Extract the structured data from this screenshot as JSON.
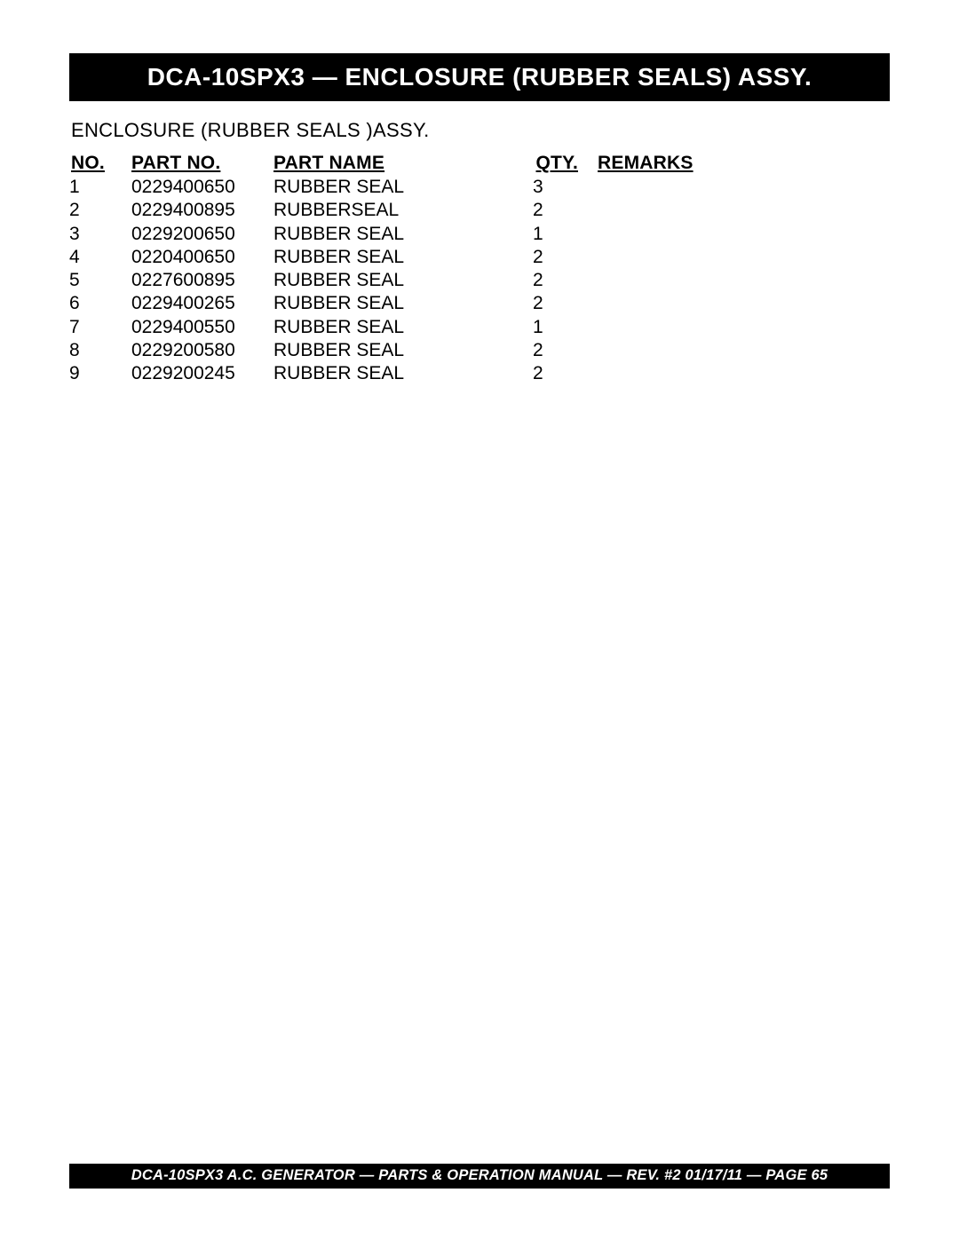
{
  "header": {
    "title": "DCA-10SPX3  — ENCLOSURE (RUBBER SEALS) ASSY."
  },
  "subtitle": "ENCLOSURE (RUBBER SEALS )ASSY.",
  "table": {
    "columns": {
      "no": "NO.",
      "part_no": "PART NO.",
      "part_name": "PART NAME",
      "qty": "QTY.",
      "remarks": "REMARKS"
    },
    "rows": [
      {
        "no": "1",
        "part_no": "0229400650",
        "part_name": "RUBBER SEAL",
        "qty": "3",
        "remarks": ""
      },
      {
        "no": "2",
        "part_no": "0229400895",
        "part_name": "RUBBERSEAL",
        "qty": "2",
        "remarks": ""
      },
      {
        "no": "3",
        "part_no": "0229200650",
        "part_name": "RUBBER SEAL",
        "qty": "1",
        "remarks": ""
      },
      {
        "no": "4",
        "part_no": "0220400650",
        "part_name": "RUBBER SEAL",
        "qty": "2",
        "remarks": ""
      },
      {
        "no": "5",
        "part_no": "0227600895",
        "part_name": "RUBBER SEAL",
        "qty": "2",
        "remarks": ""
      },
      {
        "no": "6",
        "part_no": "0229400265",
        "part_name": "RUBBER SEAL",
        "qty": "2",
        "remarks": ""
      },
      {
        "no": "7",
        "part_no": "0229400550",
        "part_name": "RUBBER SEAL",
        "qty": "1",
        "remarks": ""
      },
      {
        "no": "8",
        "part_no": "0229200580",
        "part_name": "RUBBER SEAL",
        "qty": "2",
        "remarks": ""
      },
      {
        "no": "9",
        "part_no": "0229200245",
        "part_name": "RUBBER SEAL",
        "qty": "2",
        "remarks": ""
      }
    ]
  },
  "footer": {
    "text": "DCA-10SPX3   A.C. GENERATOR — PARTS & OPERATION MANUAL — REV. #2  01/17/11 — PAGE 65"
  }
}
